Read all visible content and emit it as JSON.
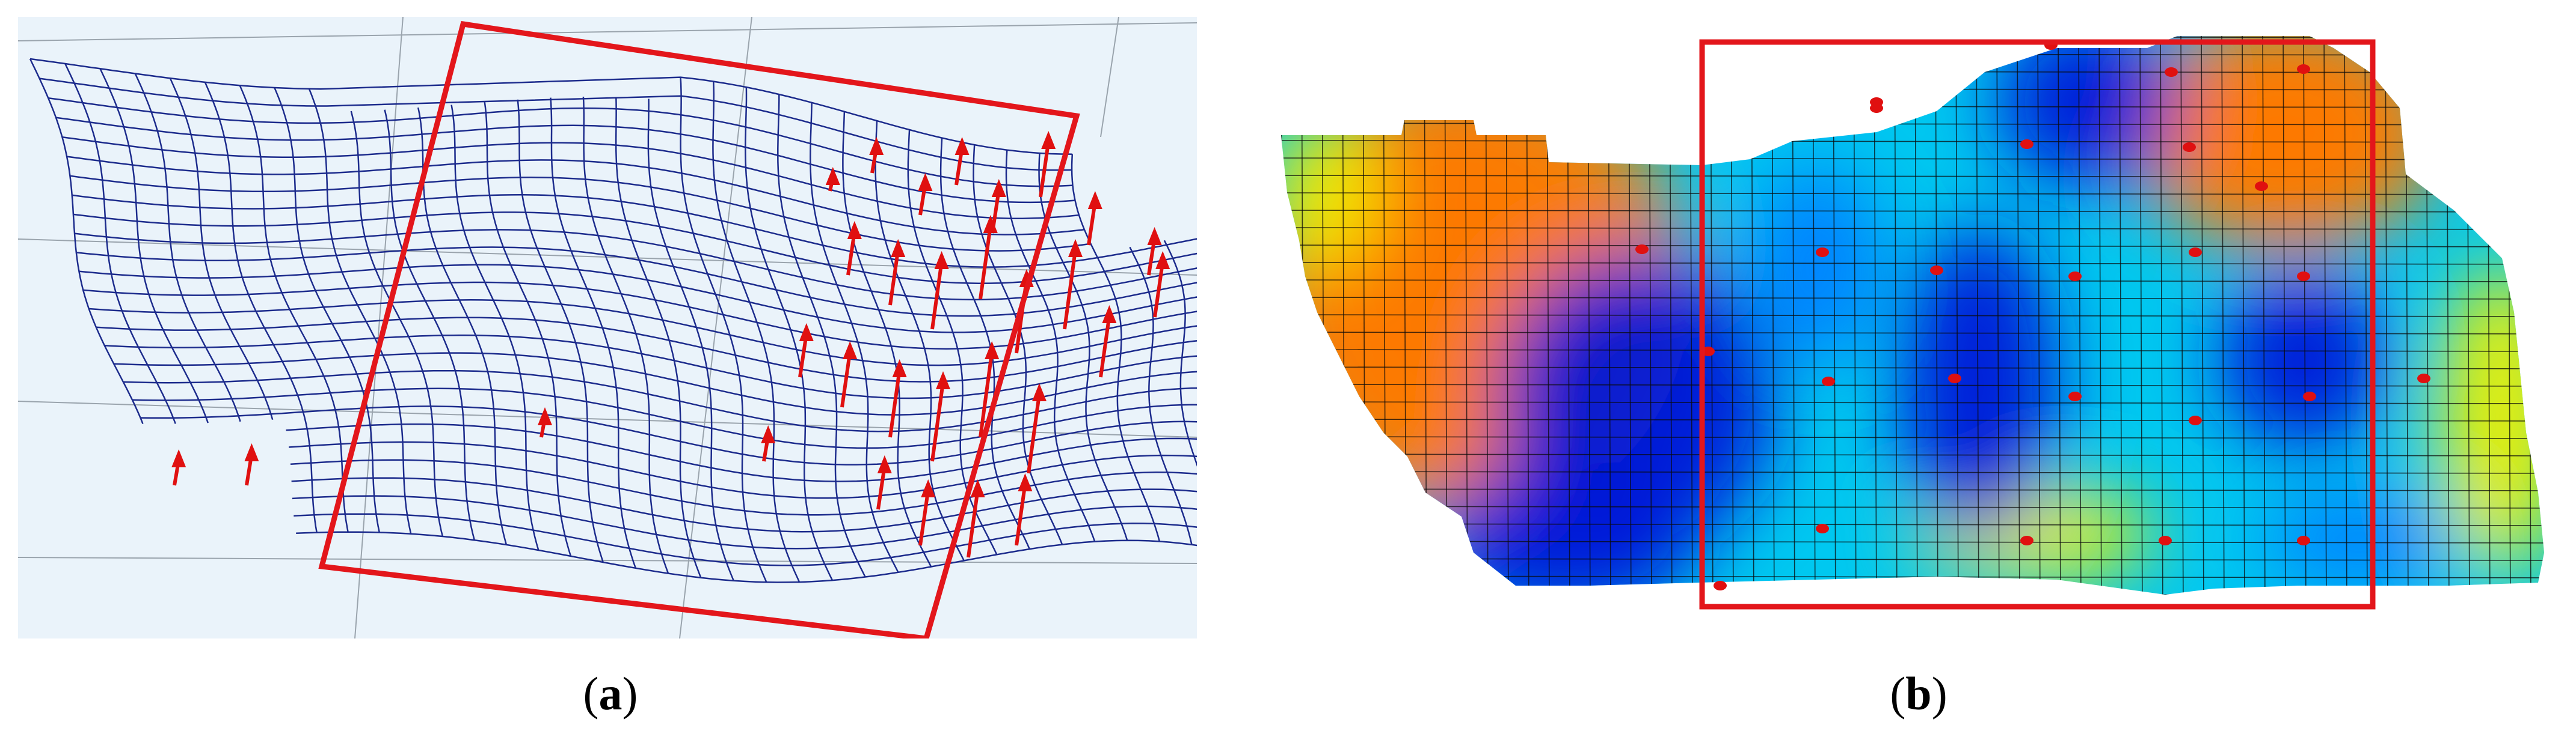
{
  "captions": {
    "a_open": "(",
    "a_letter": "a",
    "a_close": ")",
    "b_open": "(",
    "b_letter": "b",
    "b_close": ")"
  },
  "colors": {
    "mesh_line": "#1c2b8c",
    "arrow": "#e01010",
    "highlight_box": "#e3161b",
    "panel_a_background": "#eaf3fa",
    "colormap": [
      "#0018d8",
      "#0080ff",
      "#00e0f0",
      "#f0f000",
      "#ff8000",
      "#e01010"
    ]
  }
}
